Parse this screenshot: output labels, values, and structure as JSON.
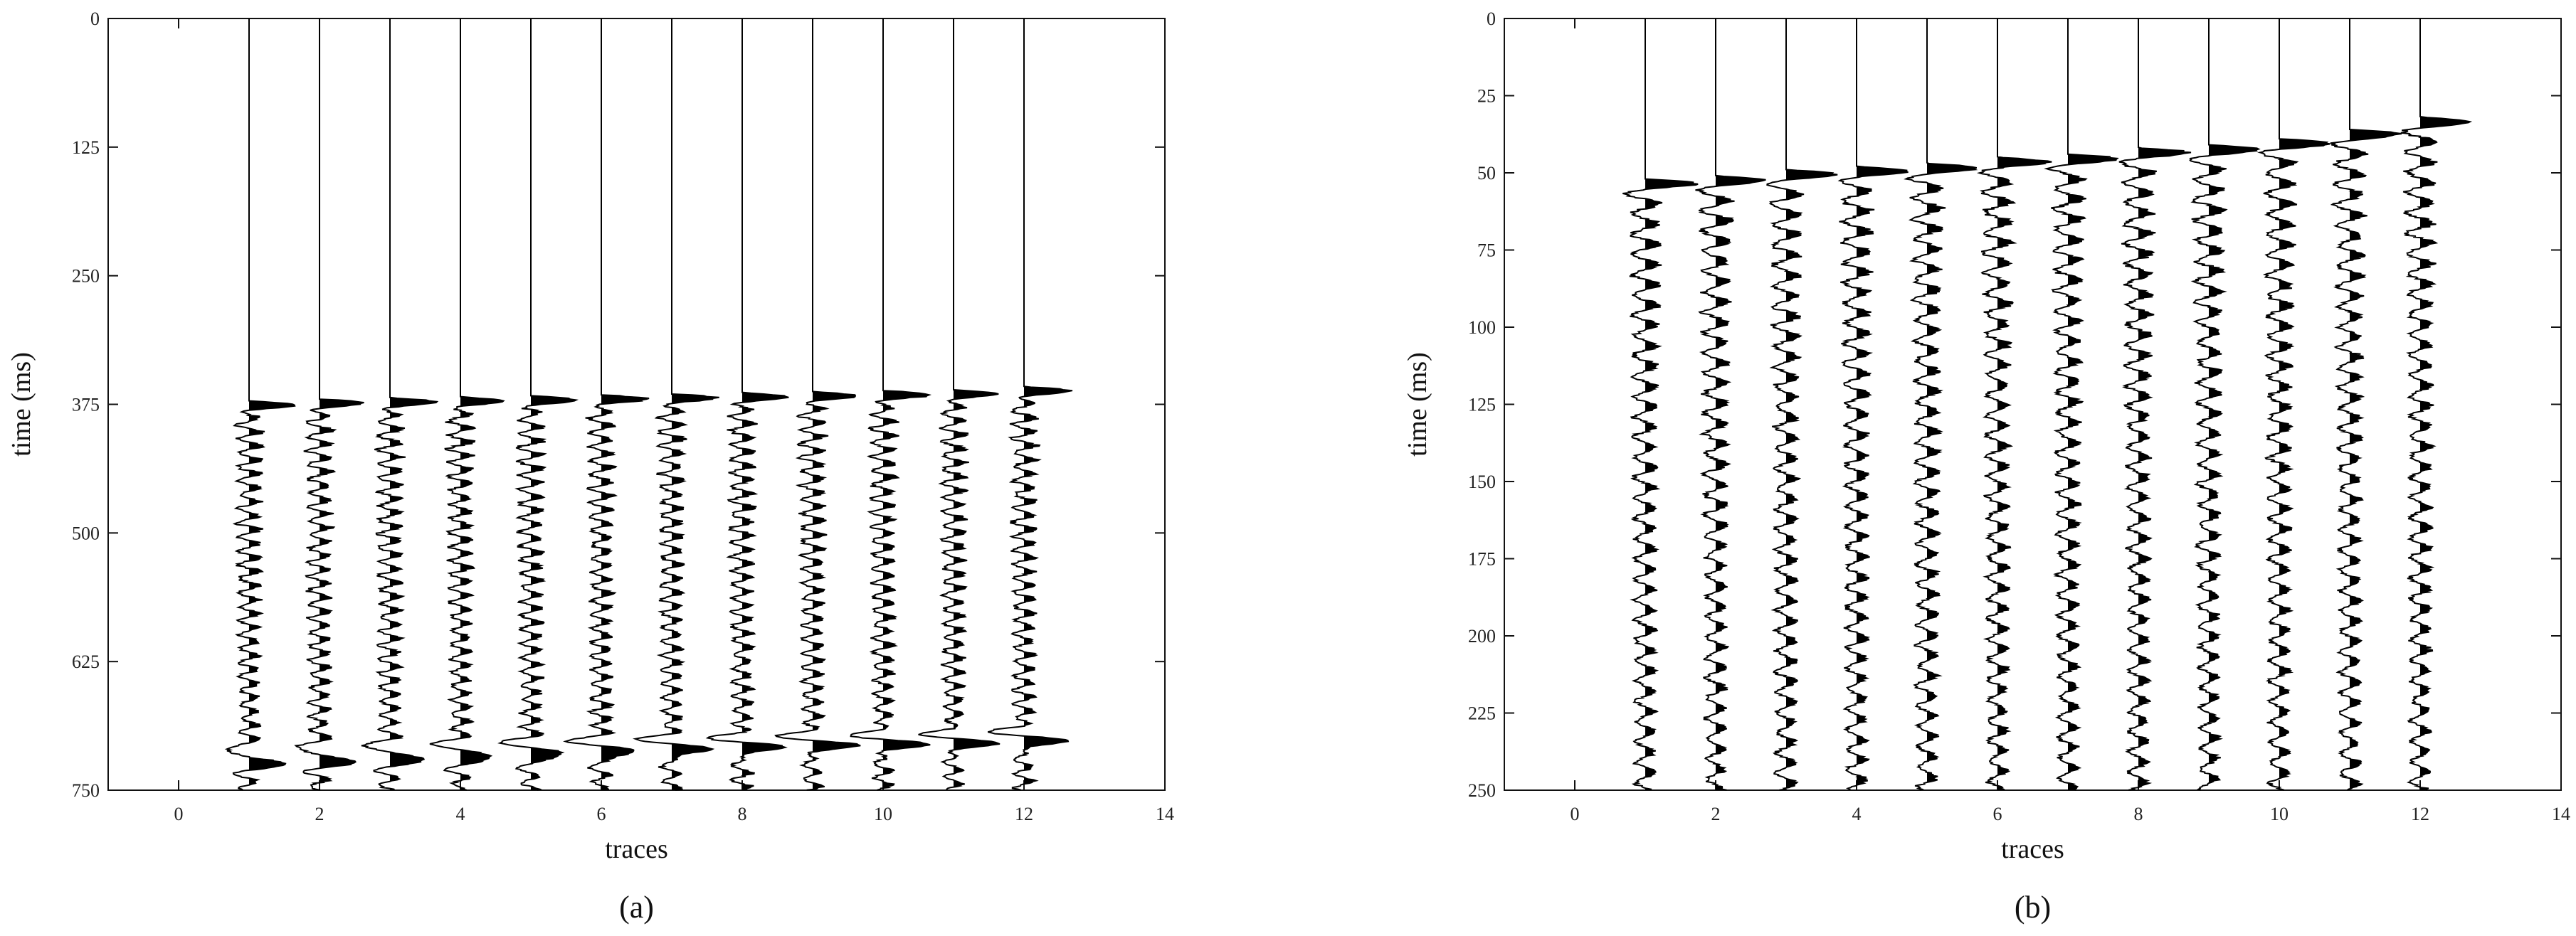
{
  "chart_data": [
    {
      "type": "line",
      "subtype": "seismic-wiggle",
      "caption": "(a)",
      "xlabel": "traces",
      "ylabel": "time (ms)",
      "xlim": [
        -1,
        14
      ],
      "ylim": [
        0,
        750
      ],
      "y_inverted": true,
      "x_ticks": [
        0,
        2,
        4,
        6,
        8,
        10,
        12,
        14
      ],
      "y_ticks": [
        0,
        125,
        250,
        375,
        500,
        625,
        750
      ],
      "grid": false,
      "traces": [
        1,
        2,
        3,
        4,
        5,
        6,
        7,
        8,
        9,
        10,
        11,
        12
      ],
      "first_arrival_ms": [
        372,
        370,
        369,
        368,
        367,
        366,
        365,
        364,
        363,
        362,
        361,
        358
      ],
      "strong_event_ms": [
        720,
        718,
        716,
        714,
        712,
        710,
        708,
        706,
        704,
        703,
        702,
        700
      ],
      "fill": "positive-black"
    },
    {
      "type": "line",
      "subtype": "seismic-wiggle",
      "caption": "(b)",
      "xlabel": "traces",
      "ylabel": "time (ms)",
      "xlim": [
        -1,
        14
      ],
      "ylim": [
        0,
        250
      ],
      "y_inverted": true,
      "x_ticks": [
        0,
        2,
        4,
        6,
        8,
        10,
        12,
        14
      ],
      "y_ticks": [
        0,
        25,
        50,
        75,
        100,
        125,
        150,
        175,
        200,
        225,
        250
      ],
      "grid": false,
      "traces": [
        1,
        2,
        3,
        4,
        5,
        6,
        7,
        8,
        9,
        10,
        11,
        12
      ],
      "first_arrival_ms": [
        52,
        51,
        49,
        48,
        47,
        45,
        44,
        42,
        41,
        39,
        36,
        32
      ],
      "fill": "positive-black"
    }
  ]
}
